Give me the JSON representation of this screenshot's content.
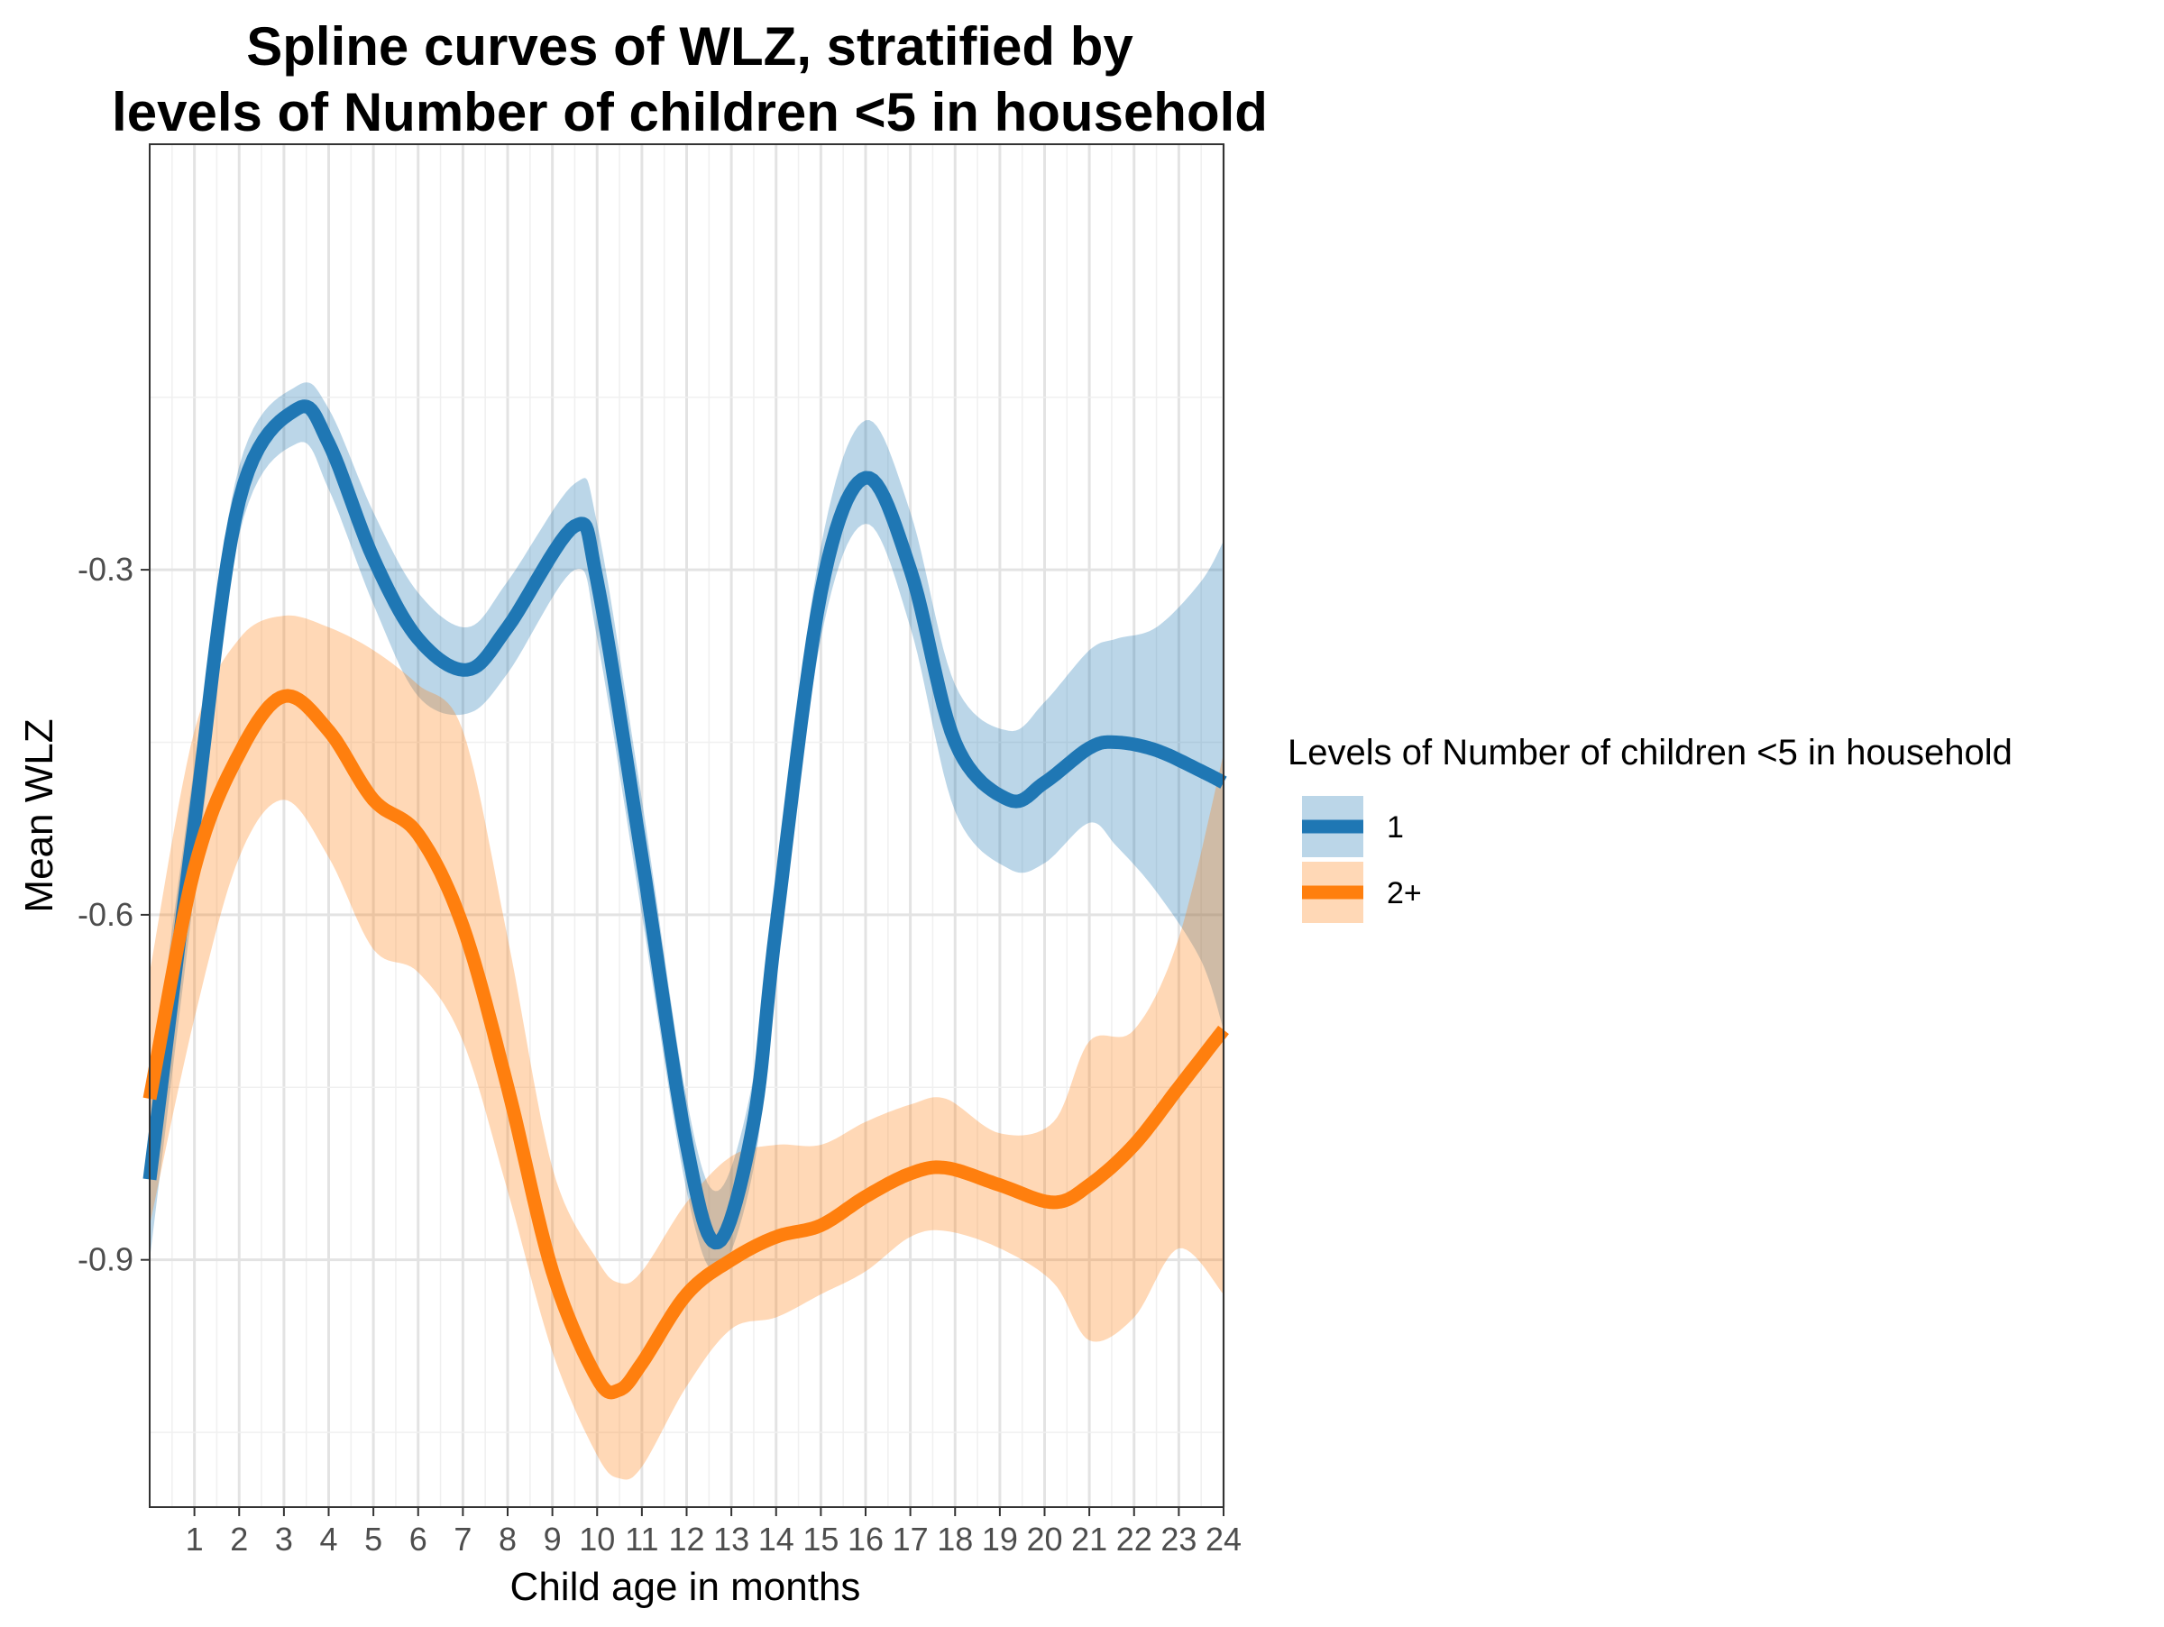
{
  "chart_data": {
    "type": "line",
    "title_lines": [
      "Spline curves of WLZ, stratified by",
      "levels of Number of children <5 in household"
    ],
    "xlabel": "Child age in months",
    "ylabel": "Mean WLZ",
    "xlim": [
      0,
      24
    ],
    "ylim": [
      -1.115,
      0.07
    ],
    "x_ticks": [
      1,
      2,
      3,
      4,
      5,
      6,
      7,
      8,
      9,
      10,
      11,
      12,
      13,
      14,
      15,
      16,
      17,
      18,
      19,
      20,
      21,
      22,
      23,
      24
    ],
    "x_tick_labels": [
      "1",
      "2",
      "3",
      "4",
      "5",
      "6",
      "7",
      "8",
      "9",
      "10",
      "11",
      "12",
      "13",
      "14",
      "15",
      "16",
      "17",
      "18",
      "19",
      "20",
      "21",
      "22",
      "23",
      "24"
    ],
    "y_ticks": [
      -0.3,
      -0.6,
      -0.9
    ],
    "y_tick_labels": [
      "-0.3",
      "-0.6",
      "-0.9"
    ],
    "grid": true,
    "legend": {
      "title": "Levels of Number of children <5 in household",
      "position": "right"
    },
    "series": [
      {
        "name": "1",
        "color": "#1F77B4",
        "x": [
          0,
          1,
          2,
          3.3,
          4,
          5,
          6,
          7.1,
          8,
          9.5,
          10,
          11,
          12,
          12.7,
          13.5,
          14,
          15,
          16,
          17,
          18,
          19.2,
          20,
          21,
          21.6,
          22.5,
          23.5,
          24
        ],
        "y": [
          -0.83,
          -0.52,
          -0.24,
          -0.16,
          -0.19,
          -0.29,
          -0.36,
          -0.387,
          -0.35,
          -0.262,
          -0.31,
          -0.55,
          -0.8,
          -0.885,
          -0.78,
          -0.61,
          -0.32,
          -0.22,
          -0.3,
          -0.45,
          -0.5,
          -0.485,
          -0.455,
          -0.45,
          -0.457,
          -0.475,
          -0.485
        ],
        "lower": [
          -0.9,
          -0.58,
          -0.27,
          -0.19,
          -0.23,
          -0.33,
          -0.41,
          -0.425,
          -0.39,
          -0.3,
          -0.36,
          -0.6,
          -0.84,
          -0.91,
          -0.82,
          -0.65,
          -0.36,
          -0.26,
          -0.35,
          -0.51,
          -0.56,
          -0.555,
          -0.52,
          -0.54,
          -0.58,
          -0.64,
          -0.7
        ],
        "upper": [
          -0.76,
          -0.47,
          -0.21,
          -0.14,
          -0.16,
          -0.25,
          -0.32,
          -0.35,
          -0.31,
          -0.225,
          -0.26,
          -0.5,
          -0.76,
          -0.84,
          -0.74,
          -0.57,
          -0.28,
          -0.17,
          -0.25,
          -0.4,
          -0.44,
          -0.415,
          -0.37,
          -0.36,
          -0.35,
          -0.31,
          -0.275
        ]
      },
      {
        "name": "2+",
        "color": "#FF7F0E",
        "x": [
          0,
          1,
          2,
          3,
          4,
          5,
          6,
          7,
          8,
          9,
          10,
          10.5,
          11,
          12,
          13,
          14,
          15,
          16,
          17,
          17.8,
          19,
          20.2,
          21,
          22,
          23,
          24
        ],
        "y": [
          -0.76,
          -0.56,
          -0.46,
          -0.41,
          -0.44,
          -0.5,
          -0.53,
          -0.61,
          -0.75,
          -0.91,
          -1.003,
          -1.013,
          -0.99,
          -0.93,
          -0.9,
          -0.88,
          -0.87,
          -0.845,
          -0.825,
          -0.82,
          -0.835,
          -0.85,
          -0.835,
          -0.8,
          -0.75,
          -0.7
        ],
        "lower": [
          -0.87,
          -0.69,
          -0.55,
          -0.5,
          -0.55,
          -0.63,
          -0.65,
          -0.71,
          -0.84,
          -0.98,
          -1.07,
          -1.09,
          -1.08,
          -1.01,
          -0.96,
          -0.95,
          -0.93,
          -0.91,
          -0.88,
          -0.875,
          -0.89,
          -0.92,
          -0.97,
          -0.95,
          -0.89,
          -0.93
        ],
        "upper": [
          -0.65,
          -0.44,
          -0.36,
          -0.34,
          -0.35,
          -0.37,
          -0.4,
          -0.44,
          -0.62,
          -0.82,
          -0.9,
          -0.92,
          -0.91,
          -0.85,
          -0.81,
          -0.8,
          -0.8,
          -0.78,
          -0.765,
          -0.76,
          -0.79,
          -0.78,
          -0.71,
          -0.7,
          -0.62,
          -0.46
        ]
      }
    ]
  }
}
